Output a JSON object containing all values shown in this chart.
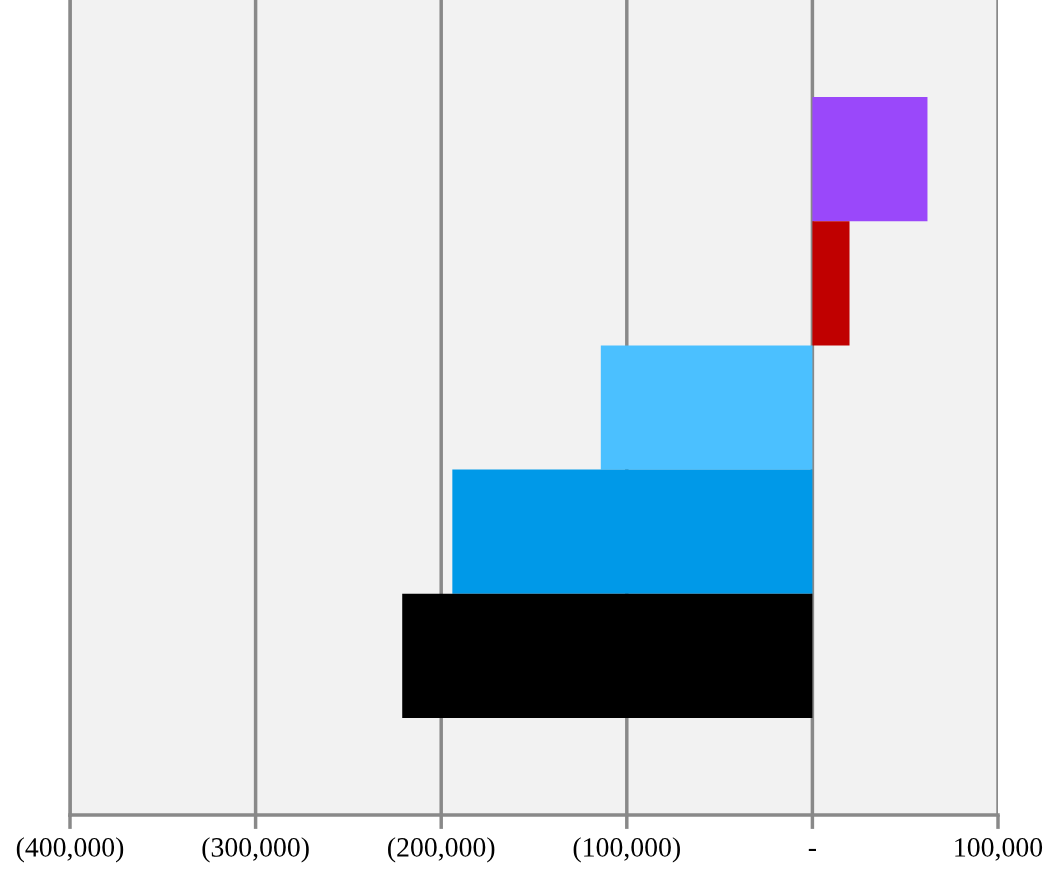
{
  "chart_data": {
    "type": "bar",
    "orientation": "horizontal",
    "categories": [
      null,
      null,
      null,
      null,
      null
    ],
    "values": [
      62000,
      20000,
      -114000,
      -194000,
      -221000
    ],
    "colors": [
      "#9a48fa",
      "#c00000",
      "#4bc0ff",
      "#0099e8",
      "#000000"
    ],
    "xlim": [
      -400000,
      100000
    ],
    "xticks": [
      {
        "value": -400000,
        "label": "(400,000)"
      },
      {
        "value": -300000,
        "label": "(300,000)"
      },
      {
        "value": -200000,
        "label": "(200,000)"
      },
      {
        "value": -100000,
        "label": "(100,000)"
      },
      {
        "value": 0,
        "label": "-"
      },
      {
        "value": 100000,
        "label": "100,000"
      }
    ],
    "grid": "x"
  }
}
